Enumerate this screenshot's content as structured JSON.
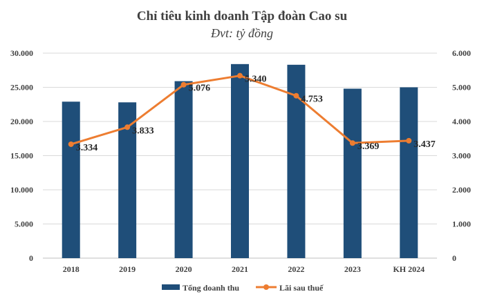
{
  "chart_data": {
    "type": "bar+line",
    "title": "Chỉ tiêu kinh doanh Tập đoàn Cao su",
    "subtitle": "Đvt: tỷ đồng",
    "categories": [
      "2018",
      "2019",
      "2020",
      "2021",
      "2022",
      "2023",
      "KH 2024"
    ],
    "series": [
      {
        "name": "Tổng doanh thu",
        "type": "bar",
        "axis": "left",
        "color": "#1F4E79",
        "values": [
          22900,
          22800,
          25900,
          28400,
          28300,
          24800,
          25000
        ]
      },
      {
        "name": "Lãi sau thuế",
        "type": "line",
        "axis": "right",
        "color": "#ED7D31",
        "values": [
          3334,
          3833,
          5076,
          5340,
          4753,
          3369,
          3437
        ],
        "data_labels": [
          "3.334",
          "3.833",
          "5.076",
          "5.340",
          "4.753",
          "3.369",
          "3.437"
        ]
      }
    ],
    "y_left": {
      "min": 0,
      "max": 30000,
      "ticks": [
        "0",
        "5.000",
        "10.000",
        "15.000",
        "20.000",
        "25.000",
        "30.000"
      ]
    },
    "y_right": {
      "min": 0,
      "max": 6000,
      "ticks": [
        "0",
        "1.000",
        "2.000",
        "3.000",
        "4.000",
        "5.000",
        "6.000"
      ]
    },
    "grid": true,
    "legend": "bottom"
  }
}
